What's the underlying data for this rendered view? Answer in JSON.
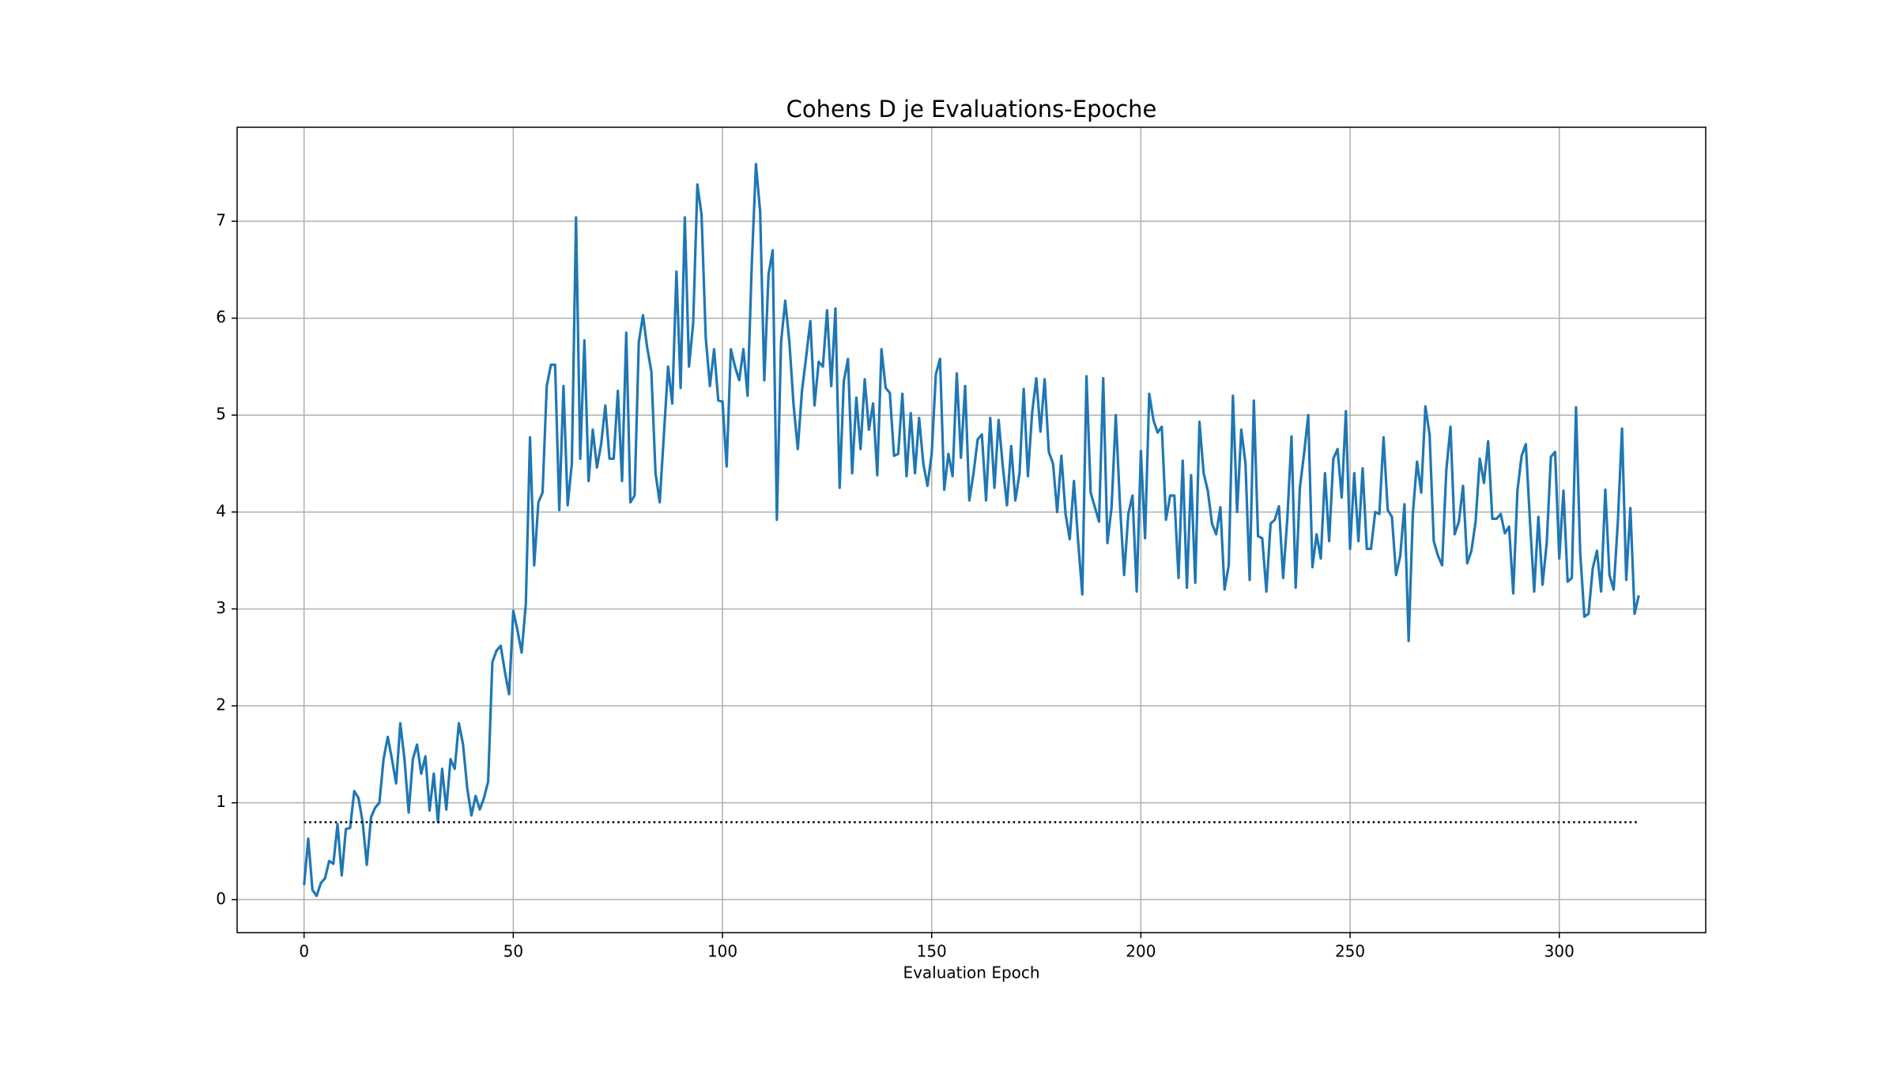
{
  "chart_data": {
    "type": "line",
    "title": "Cohens D je Evaluations-Epoche",
    "x_label": "Evaluation Epoch",
    "x": [
      0,
      1,
      2,
      3,
      4,
      5,
      6,
      7,
      8,
      9,
      10,
      11,
      12,
      13,
      14,
      15,
      16,
      17,
      18,
      19,
      20,
      21,
      22,
      23,
      24,
      25,
      26,
      27,
      28,
      29,
      30,
      31,
      32,
      33,
      34,
      35,
      36,
      37,
      38,
      39,
      40,
      41,
      42,
      43,
      44,
      45,
      46,
      47,
      48,
      49,
      50,
      51,
      52,
      53,
      54,
      55,
      56,
      57,
      58,
      59,
      60,
      61,
      62,
      63,
      64,
      65,
      66,
      67,
      68,
      69,
      70,
      71,
      72,
      73,
      74,
      75,
      76,
      77,
      78,
      79,
      80,
      81,
      82,
      83,
      84,
      85,
      86,
      87,
      88,
      89,
      90,
      91,
      92,
      93,
      94,
      95,
      96,
      97,
      98,
      99,
      100,
      101,
      102,
      103,
      104,
      105,
      106,
      107,
      108,
      109,
      110,
      111,
      112,
      113,
      114,
      115,
      116,
      117,
      118,
      119,
      120,
      121,
      122,
      123,
      124,
      125,
      126,
      127,
      128,
      129,
      130,
      131,
      132,
      133,
      134,
      135,
      136,
      137,
      138,
      139,
      140,
      141,
      142,
      143,
      144,
      145,
      146,
      147,
      148,
      149,
      150,
      151,
      152,
      153,
      154,
      155,
      156,
      157,
      158,
      159,
      160,
      161,
      162,
      163,
      164,
      165,
      166,
      167,
      168,
      169,
      170,
      171,
      172,
      173,
      174,
      175,
      176,
      177,
      178,
      179,
      180,
      181,
      182,
      183,
      184,
      185,
      186,
      187,
      188,
      189,
      190,
      191,
      192,
      193,
      194,
      195,
      196,
      197,
      198,
      199,
      200,
      201,
      202,
      203,
      204,
      205,
      206,
      207,
      208,
      209,
      210,
      211,
      212,
      213,
      214,
      215,
      216,
      217,
      218,
      219,
      220,
      221,
      222,
      223,
      224,
      225,
      226,
      227,
      228,
      229,
      230,
      231,
      232,
      233,
      234,
      235,
      236,
      237,
      238,
      239,
      240,
      241,
      242,
      243,
      244,
      245,
      246,
      247,
      248,
      249,
      250,
      251,
      252,
      253,
      254,
      255,
      256,
      257,
      258,
      259,
      260,
      261,
      262,
      263,
      264,
      265,
      266,
      267,
      268,
      269,
      270,
      271,
      272,
      273,
      274,
      275,
      276,
      277,
      278,
      279,
      280,
      281,
      282,
      283,
      284,
      285,
      286,
      287,
      288,
      289,
      290,
      291,
      292,
      293,
      294,
      295,
      296,
      297,
      298,
      299,
      300,
      301,
      302,
      303,
      304,
      305,
      306,
      307,
      308,
      309,
      310,
      311,
      312,
      313,
      314,
      315,
      316,
      317,
      318,
      319
    ],
    "series": [
      {
        "color": "#1f77b4",
        "values": [
          0.15,
          0.63,
          0.1,
          0.04,
          0.17,
          0.22,
          0.4,
          0.37,
          0.78,
          0.25,
          0.73,
          0.74,
          1.12,
          1.05,
          0.8,
          0.36,
          0.85,
          0.95,
          1.0,
          1.45,
          1.68,
          1.45,
          1.2,
          1.82,
          1.45,
          0.9,
          1.45,
          1.6,
          1.3,
          1.48,
          0.92,
          1.3,
          0.8,
          1.35,
          0.93,
          1.45,
          1.35,
          1.82,
          1.6,
          1.15,
          0.87,
          1.07,
          0.93,
          1.05,
          1.22,
          2.45,
          2.57,
          2.62,
          2.35,
          2.12,
          2.98,
          2.78,
          2.55,
          3.05,
          4.77,
          3.45,
          4.1,
          4.2,
          5.3,
          5.52,
          5.52,
          4.02,
          5.3,
          4.07,
          4.5,
          7.04,
          4.55,
          5.77,
          4.32,
          4.85,
          4.46,
          4.7,
          5.1,
          4.55,
          4.55,
          5.25,
          4.32,
          5.85,
          4.1,
          4.17,
          5.75,
          6.03,
          5.7,
          5.45,
          4.4,
          4.1,
          4.8,
          5.5,
          5.12,
          6.48,
          5.28,
          7.04,
          5.5,
          5.95,
          7.38,
          7.07,
          5.8,
          5.3,
          5.68,
          5.15,
          5.14,
          4.47,
          5.68,
          5.5,
          5.36,
          5.68,
          5.2,
          6.55,
          7.59,
          7.1,
          5.36,
          6.45,
          6.7,
          3.92,
          5.75,
          6.18,
          5.75,
          5.1,
          4.65,
          5.25,
          5.6,
          5.97,
          5.1,
          5.55,
          5.5,
          6.08,
          5.3,
          6.1,
          4.25,
          5.35,
          5.58,
          4.4,
          5.18,
          4.65,
          5.37,
          4.85,
          5.12,
          4.38,
          5.68,
          5.28,
          5.23,
          4.58,
          4.6,
          5.22,
          4.37,
          5.02,
          4.4,
          4.97,
          4.5,
          4.27,
          4.6,
          5.42,
          5.58,
          4.23,
          4.6,
          4.37,
          5.43,
          4.56,
          5.3,
          4.12,
          4.4,
          4.75,
          4.8,
          4.12,
          4.97,
          4.25,
          4.95,
          4.47,
          4.07,
          4.68,
          4.12,
          4.4,
          5.27,
          4.37,
          5.02,
          5.38,
          4.83,
          5.37,
          4.62,
          4.5,
          4.0,
          4.58,
          3.98,
          3.72,
          4.32,
          3.7,
          3.15,
          5.4,
          4.2,
          4.05,
          3.9,
          5.38,
          3.68,
          4.05,
          5.0,
          4.08,
          3.35,
          3.98,
          4.17,
          3.18,
          4.63,
          3.73,
          5.22,
          4.95,
          4.82,
          4.88,
          3.92,
          4.17,
          4.17,
          3.32,
          4.53,
          3.22,
          4.38,
          3.27,
          4.93,
          4.4,
          4.22,
          3.88,
          3.77,
          4.05,
          3.2,
          3.45,
          5.2,
          4.0,
          4.85,
          4.5,
          3.3,
          5.15,
          3.75,
          3.73,
          3.18,
          3.88,
          3.92,
          4.06,
          3.32,
          3.93,
          4.78,
          3.22,
          4.25,
          4.6,
          5.0,
          3.43,
          3.77,
          3.52,
          4.4,
          3.7,
          4.55,
          4.65,
          4.15,
          5.04,
          3.62,
          4.4,
          3.7,
          4.45,
          3.62,
          3.62,
          4.0,
          3.98,
          4.77,
          4.02,
          3.95,
          3.35,
          3.55,
          4.08,
          2.67,
          3.98,
          4.52,
          4.2,
          5.09,
          4.8,
          3.7,
          3.55,
          3.45,
          4.43,
          4.88,
          3.77,
          3.9,
          4.27,
          3.47,
          3.6,
          3.9,
          4.55,
          4.3,
          4.73,
          3.93,
          3.93,
          3.98,
          3.78,
          3.85,
          3.16,
          4.22,
          4.58,
          4.7,
          3.9,
          3.18,
          3.95,
          3.25,
          3.68,
          4.57,
          4.62,
          3.52,
          4.22,
          3.28,
          3.32,
          5.08,
          3.58,
          2.92,
          2.95,
          3.42,
          3.6,
          3.18,
          4.23,
          3.35,
          3.2,
          3.9,
          4.86,
          3.3,
          4.04,
          2.95,
          3.14
        ]
      },
      {
        "color": "#000000",
        "line_style": "dotted",
        "x": [
          0,
          319
        ],
        "values": [
          0.8,
          0.8
        ]
      }
    ],
    "xlim": [
      -16,
      335
    ],
    "ylim": [
      -0.34,
      7.97
    ],
    "xticks": [
      0,
      50,
      100,
      150,
      200,
      250,
      300
    ],
    "yticks": [
      0,
      1,
      2,
      3,
      4,
      5,
      6,
      7
    ],
    "grid": true
  }
}
